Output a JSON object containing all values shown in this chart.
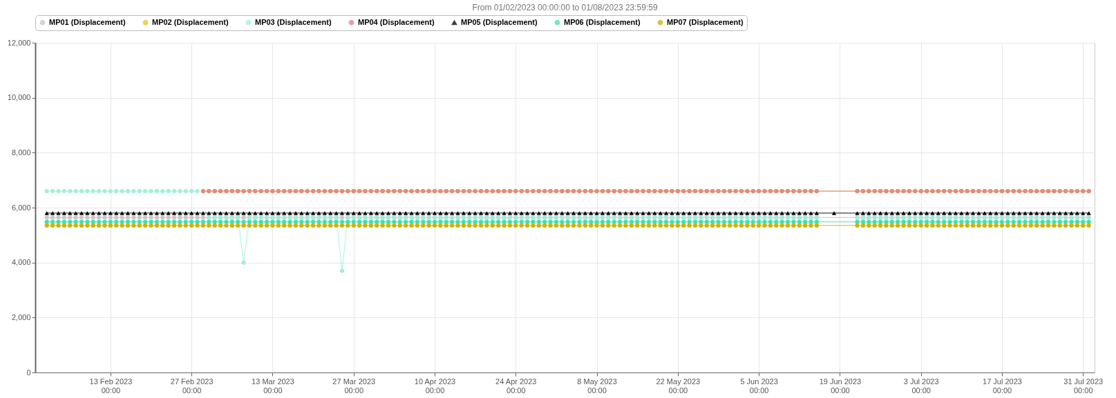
{
  "chart_data": {
    "type": "line",
    "title": "From 01/02/2023 00:00:00 to 01/08/2023 23:59:59",
    "marker": "circle",
    "grid": true,
    "legend": "top left",
    "xlim": [
      "2023-01-31",
      "2023-08-02"
    ],
    "ylim": [
      0,
      12000
    ],
    "yticks": [
      0,
      {
        "value": 2000,
        "label": "2,000"
      },
      {
        "value": 4000,
        "label": "4,000"
      },
      {
        "value": 6000,
        "label": "6,000"
      },
      {
        "value": 8000,
        "label": "8,000"
      },
      {
        "value": 10000,
        "label": "10,000"
      },
      {
        "value": 12000,
        "label": "12,000"
      }
    ],
    "xticks": [
      {
        "value": "2023-02-13",
        "label": "13 Feb 2023\n00:00"
      },
      {
        "value": "2023-02-27",
        "label": "27 Feb 2023\n00:00"
      },
      {
        "value": "2023-03-13",
        "label": "13 Mar 2023\n00:00"
      },
      {
        "value": "2023-03-27",
        "label": "27 Mar 2023\n00:00"
      },
      {
        "value": "2023-04-10",
        "label": "10 Apr 2023\n00:00"
      },
      {
        "value": "2023-04-24",
        "label": "24 Apr 2023\n00:00"
      },
      {
        "value": "2023-05-08",
        "label": "8 May 2023\n00:00"
      },
      {
        "value": "2023-05-22",
        "label": "22 May 2023\n00:00"
      },
      {
        "value": "2023-06-05",
        "label": "5 Jun 2023\n00:00"
      },
      {
        "value": "2023-06-19",
        "label": "19 Jun 2023\n00:00"
      },
      {
        "value": "2023-07-03",
        "label": "3 Jul 2023\n00:00"
      },
      {
        "value": "2023-07-17",
        "label": "17 Jul 2023\n00:00"
      },
      {
        "value": "2023-07-31",
        "label": "31 Jul 2023\n00:00"
      }
    ],
    "x": [
      "2023-02-02",
      "2023-02-03",
      "2023-02-04",
      "2023-02-05",
      "2023-02-06",
      "2023-02-07",
      "2023-02-08",
      "2023-02-09",
      "2023-02-10",
      "2023-02-11",
      "2023-02-12",
      "2023-02-13",
      "2023-02-14",
      "2023-02-15",
      "2023-02-16",
      "2023-02-17",
      "2023-02-18",
      "2023-02-19",
      "2023-02-20",
      "2023-02-21",
      "2023-02-22",
      "2023-02-23",
      "2023-02-24",
      "2023-02-25",
      "2023-02-26",
      "2023-02-27",
      "2023-02-28",
      "2023-03-01",
      "2023-03-02",
      "2023-03-03",
      "2023-03-04",
      "2023-03-05",
      "2023-03-06",
      "2023-03-07",
      "2023-03-08",
      "2023-03-09",
      "2023-03-10",
      "2023-03-11",
      "2023-03-12",
      "2023-03-13",
      "2023-03-14",
      "2023-03-15",
      "2023-03-16",
      "2023-03-17",
      "2023-03-18",
      "2023-03-19",
      "2023-03-20",
      "2023-03-21",
      "2023-03-22",
      "2023-03-23",
      "2023-03-24",
      "2023-03-25",
      "2023-03-26",
      "2023-03-27",
      "2023-03-28",
      "2023-03-29",
      "2023-03-30",
      "2023-03-31",
      "2023-04-01",
      "2023-04-02",
      "2023-04-03",
      "2023-04-04",
      "2023-04-05",
      "2023-04-06",
      "2023-04-07",
      "2023-04-08",
      "2023-04-09",
      "2023-04-10",
      "2023-04-11",
      "2023-04-12",
      "2023-04-13",
      "2023-04-14",
      "2023-04-15",
      "2023-04-16",
      "2023-04-17",
      "2023-04-18",
      "2023-04-19",
      "2023-04-20",
      "2023-04-21",
      "2023-04-22",
      "2023-04-23",
      "2023-04-24",
      "2023-04-25",
      "2023-04-26",
      "2023-04-27",
      "2023-04-28",
      "2023-04-29",
      "2023-04-30",
      "2023-05-01",
      "2023-05-02",
      "2023-05-03",
      "2023-05-04",
      "2023-05-05",
      "2023-05-06",
      "2023-05-07",
      "2023-05-08",
      "2023-05-09",
      "2023-05-10",
      "2023-05-11",
      "2023-05-12",
      "2023-05-13",
      "2023-05-14",
      "2023-05-15",
      "2023-05-16",
      "2023-05-17",
      "2023-05-18",
      "2023-05-19",
      "2023-05-20",
      "2023-05-21",
      "2023-05-22",
      "2023-05-23",
      "2023-05-24",
      "2023-05-25",
      "2023-05-26",
      "2023-05-27",
      "2023-05-28",
      "2023-05-29",
      "2023-05-30",
      "2023-05-31",
      "2023-06-01",
      "2023-06-02",
      "2023-06-03",
      "2023-06-04",
      "2023-06-05",
      "2023-06-06",
      "2023-06-07",
      "2023-06-08",
      "2023-06-09",
      "2023-06-10",
      "2023-06-11",
      "2023-06-12",
      "2023-06-13",
      "2023-06-14",
      "2023-06-15",
      "2023-06-22",
      "2023-06-23",
      "2023-06-24",
      "2023-06-25",
      "2023-06-26",
      "2023-06-27",
      "2023-06-28",
      "2023-06-29",
      "2023-06-30",
      "2023-07-01",
      "2023-07-02",
      "2023-07-03",
      "2023-07-04",
      "2023-07-05",
      "2023-07-06",
      "2023-07-07",
      "2023-07-08",
      "2023-07-09",
      "2023-07-10",
      "2023-07-11",
      "2023-07-12",
      "2023-07-13",
      "2023-07-14",
      "2023-07-15",
      "2023-07-16",
      "2023-07-17",
      "2023-07-18",
      "2023-07-19",
      "2023-07-20",
      "2023-07-21",
      "2023-07-22",
      "2023-07-23",
      "2023-07-24",
      "2023-07-25",
      "2023-07-26",
      "2023-07-27",
      "2023-07-28",
      "2023-07-29",
      "2023-07-30",
      "2023-07-31",
      "2023-08-01"
    ],
    "series": [
      {
        "name": "MP01 (Displacement)",
        "color": "#c8c8c8",
        "values": [
          5640,
          5640,
          5640,
          5640,
          5640,
          5640,
          5640,
          5640,
          5640,
          5640,
          5640,
          5640,
          5640,
          5640,
          5640,
          5640,
          5640,
          5640,
          5640,
          5640,
          5640,
          5640,
          5640,
          5640,
          5640,
          5640,
          5640,
          5640,
          5640,
          5640,
          5640,
          5640,
          5640,
          5640,
          5640,
          5640,
          5640,
          5640,
          5640,
          5640,
          5640,
          5640,
          5640,
          5640,
          5640,
          5640,
          5640,
          5640,
          5640,
          5640,
          5640,
          5640,
          5640,
          5640,
          5640,
          5640,
          5640,
          5640,
          5640,
          5640,
          5640,
          5640,
          5640,
          5640,
          5640,
          5640,
          5640,
          5640,
          5640,
          5640,
          5640,
          5640,
          5640,
          5640,
          5640,
          5640,
          5640,
          5640,
          5640,
          5640,
          5640,
          5640,
          5640,
          5640,
          5640,
          5640,
          5640,
          5640,
          5640,
          5640,
          5640,
          5640,
          5640,
          5640,
          5640,
          5640,
          5640,
          5640,
          5640,
          5640,
          5640,
          5640,
          5640,
          5640,
          5640,
          5640,
          5640,
          5640,
          5640,
          5640,
          5640,
          5640,
          5640,
          5640,
          5640,
          5640,
          5640,
          5640,
          5640,
          5640,
          5640,
          5640,
          5640,
          5640,
          5640,
          5640,
          5640,
          5640,
          5640,
          5640,
          5640,
          5640,
          5640,
          5640,
          5640,
          5640,
          5640,
          5640,
          5640,
          5640,
          5640,
          5640,
          5640,
          5640,
          5640,
          5640,
          5640,
          5640,
          5640,
          5640,
          5640,
          5640,
          5640,
          5640,
          5640,
          5640,
          5640,
          5640,
          5640,
          5640,
          5640,
          5640,
          5640,
          5640,
          5640,
          5640,
          5640,
          5640,
          5640,
          5640,
          5640,
          5640,
          5640,
          5640,
          5640
        ]
      },
      {
        "name": "MP02 (Displacement)",
        "color": "#f0c020",
        "values": [
          null,
          null,
          null,
          null,
          null,
          null,
          null,
          null,
          null,
          null,
          null,
          null,
          null,
          null,
          null,
          null,
          null,
          null,
          null,
          null,
          null,
          null,
          null,
          null,
          null,
          null,
          null,
          6600,
          6600,
          6600,
          6600,
          6600,
          6600,
          6600,
          6600,
          6600,
          6600,
          6600,
          6600,
          6600,
          6600,
          6600,
          6600,
          6600,
          6600,
          6600,
          6600,
          6600,
          6600,
          6600,
          6600,
          6600,
          6600,
          6600,
          6600,
          6600,
          6600,
          6600,
          6600,
          6600,
          6600,
          6600,
          6600,
          6600,
          6600,
          6600,
          6600,
          6600,
          6600,
          6600,
          6600,
          6600,
          6600,
          6600,
          6600,
          6600,
          6600,
          6600,
          6600,
          6600,
          6600,
          6600,
          6600,
          6600,
          6600,
          6600,
          6600,
          6600,
          6600,
          6600,
          6600,
          6600,
          6600,
          6600,
          6600,
          6600,
          6600,
          6600,
          6600,
          6600,
          6600,
          6600,
          6600,
          6600,
          6600,
          6600,
          6600,
          6600,
          6600,
          6600,
          6600,
          6600,
          6600,
          6600,
          6600,
          6600,
          6600,
          6600,
          6600,
          6600,
          6600,
          6600,
          6600,
          6600,
          6600,
          6600,
          6600,
          6600,
          6600,
          6600,
          6600,
          6600,
          6600,
          6600,
          6600,
          6600,
          6600,
          6600,
          6600,
          6600,
          6600,
          6600,
          6600,
          6600,
          6600,
          6600,
          6600,
          6600,
          6600,
          6600,
          6600,
          6600,
          6600,
          6600,
          6600,
          6600,
          6600,
          6600,
          6600,
          6600,
          6600,
          6600,
          6600,
          6600,
          6600,
          6600,
          6600,
          6600,
          6600,
          6600,
          6600,
          6600,
          6600,
          6600,
          6600
        ]
      },
      {
        "name": "MP03 (Displacement)",
        "color": "#a0f0d8",
        "values": [
          6600,
          6600,
          6600,
          6600,
          6600,
          6600,
          6600,
          6600,
          6600,
          6600,
          6600,
          6600,
          6600,
          6600,
          6600,
          6600,
          6600,
          6600,
          6600,
          6600,
          6600,
          6600,
          6600,
          6600,
          6600,
          6600,
          6600,
          null,
          5640,
          5640,
          5640,
          5640,
          5640,
          5640,
          4000,
          5640,
          5640,
          5640,
          5640,
          5640,
          5640,
          5640,
          5640,
          5640,
          5640,
          5640,
          5640,
          5640,
          5640,
          5640,
          5640,
          3700,
          5640,
          5640,
          5640,
          5640,
          5640,
          5640,
          5640,
          5640,
          5640,
          5640,
          5640,
          5640,
          5640,
          5640,
          5640,
          5640,
          5640,
          5640,
          5640,
          5640,
          5640,
          5640,
          5640,
          5640,
          5640,
          5640,
          5640,
          5640,
          5640,
          5640,
          5640,
          5640,
          5640,
          5640,
          5640,
          5640,
          5640,
          5640,
          5640,
          5640,
          5640,
          5640,
          5640,
          5640,
          5640,
          5640,
          5640,
          5640,
          5640,
          5640,
          5640,
          5640,
          5640,
          5640,
          5640,
          5640,
          5640,
          5640,
          5640,
          5640,
          5640,
          5640,
          5640,
          5640,
          5640,
          5640,
          5640,
          5640,
          5640,
          5640,
          5640,
          5640,
          5640,
          5640,
          5640,
          5640,
          5640,
          5640,
          5640,
          5640,
          5640,
          5640,
          5640,
          5640,
          5640,
          5640,
          5640,
          5640,
          5640,
          5640,
          5640,
          5640,
          5640,
          5640,
          5640,
          5640,
          5640,
          5640,
          5640,
          5640,
          5640,
          5640,
          5640,
          5640,
          5640,
          5640,
          5640,
          5640,
          5640,
          5640,
          5640,
          5640,
          5640,
          5640,
          5640,
          5640,
          5640,
          5640,
          5640,
          5640,
          5640,
          5640,
          5640
        ]
      },
      {
        "name": "MP04 (Displacement)",
        "color": "#e08090",
        "values": [
          null,
          null,
          null,
          null,
          null,
          null,
          null,
          null,
          null,
          null,
          null,
          null,
          null,
          null,
          null,
          null,
          null,
          null,
          null,
          null,
          null,
          null,
          null,
          null,
          null,
          null,
          null,
          6600,
          6600,
          6600,
          6600,
          6600,
          6600,
          6600,
          6600,
          6600,
          6600,
          6600,
          6600,
          6600,
          6600,
          6600,
          6600,
          6600,
          6600,
          6600,
          6600,
          6600,
          6600,
          6600,
          6600,
          6600,
          6600,
          6600,
          6600,
          6600,
          6600,
          6600,
          6600,
          6600,
          6600,
          6600,
          6600,
          6600,
          6600,
          6600,
          6600,
          6600,
          6600,
          6600,
          6600,
          6600,
          6600,
          6600,
          6600,
          6600,
          6600,
          6600,
          6600,
          6600,
          6600,
          6600,
          6600,
          6600,
          6600,
          6600,
          6600,
          6600,
          6600,
          6600,
          6600,
          6600,
          6600,
          6600,
          6600,
          6600,
          6600,
          6600,
          6600,
          6600,
          6600,
          6600,
          6600,
          6600,
          6600,
          6600,
          6600,
          6600,
          6600,
          6600,
          6600,
          6600,
          6600,
          6600,
          6600,
          6600,
          6600,
          6600,
          6600,
          6600,
          6600,
          6600,
          6600,
          6600,
          6600,
          6600,
          6600,
          6600,
          6600,
          6600,
          6600,
          6600,
          6600,
          6600,
          6600,
          6600,
          6600,
          6600,
          6600,
          6600,
          6600,
          6600,
          6600,
          6600,
          6600,
          6600,
          6600,
          6600,
          6600,
          6600,
          6600,
          6600,
          6600,
          6600,
          6600,
          6600,
          6600,
          6600,
          6600,
          6600,
          6600,
          6600,
          6600,
          6600,
          6600,
          6600,
          6600,
          6600,
          6600,
          6600,
          6600,
          6600,
          6600,
          6600,
          6600
        ]
      },
      {
        "name": "MP05 (Displacement)",
        "color": "#000000",
        "marker": "triangle",
        "x": [
          "2023-02-02",
          "2023-02-03",
          "2023-02-04",
          "2023-02-05",
          "2023-02-06",
          "2023-02-07",
          "2023-02-08",
          "2023-02-09",
          "2023-02-10",
          "2023-02-11",
          "2023-02-12",
          "2023-02-13",
          "2023-02-14",
          "2023-02-15",
          "2023-02-16",
          "2023-02-17",
          "2023-02-18",
          "2023-02-19",
          "2023-02-20",
          "2023-02-21",
          "2023-02-22",
          "2023-02-23",
          "2023-02-24",
          "2023-02-25",
          "2023-02-26",
          "2023-02-27",
          "2023-02-28",
          "2023-03-01",
          "2023-03-02",
          "2023-03-03",
          "2023-03-04",
          "2023-03-05",
          "2023-03-06",
          "2023-03-07",
          "2023-03-08",
          "2023-03-09",
          "2023-03-10",
          "2023-03-11",
          "2023-03-12",
          "2023-03-13",
          "2023-03-14",
          "2023-03-15",
          "2023-03-16",
          "2023-03-17",
          "2023-03-18",
          "2023-03-19",
          "2023-03-20",
          "2023-03-21",
          "2023-03-22",
          "2023-03-23",
          "2023-03-24",
          "2023-03-25",
          "2023-03-26",
          "2023-03-27",
          "2023-03-28",
          "2023-03-29",
          "2023-03-30",
          "2023-03-31",
          "2023-04-01",
          "2023-04-02",
          "2023-04-03",
          "2023-04-04",
          "2023-04-05",
          "2023-04-06",
          "2023-04-07",
          "2023-04-08",
          "2023-04-09",
          "2023-04-10",
          "2023-04-11",
          "2023-04-12",
          "2023-04-13",
          "2023-04-14",
          "2023-04-15",
          "2023-04-16",
          "2023-04-17",
          "2023-04-18",
          "2023-04-19",
          "2023-04-20",
          "2023-04-21",
          "2023-04-22",
          "2023-04-23",
          "2023-04-24",
          "2023-04-25",
          "2023-04-26",
          "2023-04-27",
          "2023-04-28",
          "2023-04-29",
          "2023-04-30",
          "2023-05-01",
          "2023-05-02",
          "2023-05-03",
          "2023-05-04",
          "2023-05-05",
          "2023-05-06",
          "2023-05-07",
          "2023-05-08",
          "2023-05-09",
          "2023-05-10",
          "2023-05-11",
          "2023-05-12",
          "2023-05-13",
          "2023-05-14",
          "2023-05-15",
          "2023-05-16",
          "2023-05-17",
          "2023-05-18",
          "2023-05-19",
          "2023-05-20",
          "2023-05-21",
          "2023-05-22",
          "2023-05-23",
          "2023-05-24",
          "2023-05-25",
          "2023-05-26",
          "2023-05-27",
          "2023-05-28",
          "2023-05-29",
          "2023-05-30",
          "2023-05-31",
          "2023-06-01",
          "2023-06-02",
          "2023-06-03",
          "2023-06-04",
          "2023-06-05",
          "2023-06-06",
          "2023-06-07",
          "2023-06-08",
          "2023-06-09",
          "2023-06-10",
          "2023-06-11",
          "2023-06-12",
          "2023-06-13",
          "2023-06-14",
          "2023-06-15",
          "2023-06-18",
          "2023-06-22",
          "2023-06-23",
          "2023-06-24",
          "2023-06-25",
          "2023-06-26",
          "2023-06-27",
          "2023-06-28",
          "2023-06-29",
          "2023-06-30",
          "2023-07-01",
          "2023-07-02",
          "2023-07-03",
          "2023-07-04",
          "2023-07-05",
          "2023-07-06",
          "2023-07-07",
          "2023-07-08",
          "2023-07-09",
          "2023-07-10",
          "2023-07-11",
          "2023-07-12",
          "2023-07-13",
          "2023-07-14",
          "2023-07-15",
          "2023-07-16",
          "2023-07-17",
          "2023-07-18",
          "2023-07-19",
          "2023-07-20",
          "2023-07-21",
          "2023-07-22",
          "2023-07-23",
          "2023-07-24",
          "2023-07-25",
          "2023-07-26",
          "2023-07-27",
          "2023-07-28",
          "2023-07-29",
          "2023-07-30",
          "2023-07-31",
          "2023-08-01"
        ],
        "values": [
          5800,
          5800,
          5800,
          5800,
          5800,
          5800,
          5800,
          5800,
          5800,
          5800,
          5800,
          5800,
          5800,
          5800,
          5800,
          5800,
          5800,
          5800,
          5800,
          5800,
          5800,
          5800,
          5800,
          5800,
          5800,
          5800,
          5800,
          5800,
          5800,
          5800,
          5800,
          5800,
          5800,
          5800,
          5800,
          5800,
          5800,
          5800,
          5800,
          5800,
          5800,
          5800,
          5800,
          5800,
          5800,
          5800,
          5800,
          5800,
          5800,
          5800,
          5800,
          5800,
          5800,
          5800,
          5800,
          5800,
          5800,
          5800,
          5800,
          5800,
          5800,
          5800,
          5800,
          5800,
          5800,
          5800,
          5800,
          5800,
          5800,
          5800,
          5800,
          5800,
          5800,
          5800,
          5800,
          5800,
          5800,
          5800,
          5800,
          5800,
          5800,
          5800,
          5800,
          5800,
          5800,
          5800,
          5800,
          5800,
          5800,
          5800,
          5800,
          5800,
          5800,
          5800,
          5800,
          5800,
          5800,
          5800,
          5800,
          5800,
          5800,
          5800,
          5800,
          5800,
          5800,
          5800,
          5800,
          5800,
          5800,
          5800,
          5800,
          5800,
          5800,
          5800,
          5800,
          5800,
          5800,
          5800,
          5800,
          5800,
          5800,
          5800,
          5800,
          5800,
          5800,
          5800,
          5800,
          5800,
          5800,
          5800,
          5800,
          5800,
          5800,
          5800,
          5800,
          5800,
          5800,
          5800,
          5800,
          5800,
          5800,
          5800,
          5800,
          5800,
          5800,
          5800,
          5800,
          5800,
          5800,
          5800,
          5800,
          5800,
          5800,
          5800,
          5800,
          5800,
          5800,
          5800,
          5800,
          5800,
          5800,
          5800,
          5800,
          5800,
          5800,
          5800,
          5800,
          5800,
          5800,
          5800,
          5800,
          5800,
          5800,
          5800,
          5800,
          5800
        ]
      },
      {
        "name": "MP06 (Displacement)",
        "color": "#40e0b0",
        "values": [
          5480,
          5480,
          5480,
          5480,
          5480,
          5480,
          5480,
          5480,
          5480,
          5480,
          5480,
          5480,
          5480,
          5480,
          5480,
          5480,
          5480,
          5480,
          5480,
          5480,
          5480,
          5480,
          5480,
          5480,
          5480,
          5480,
          5480,
          5480,
          5480,
          5480,
          5480,
          5480,
          5480,
          5480,
          5480,
          5480,
          5480,
          5480,
          5480,
          5480,
          5480,
          5480,
          5480,
          5480,
          5480,
          5480,
          5480,
          5480,
          5480,
          5480,
          5480,
          5480,
          5480,
          5480,
          5480,
          5480,
          5480,
          5480,
          5480,
          5480,
          5480,
          5480,
          5480,
          5480,
          5480,
          5480,
          5480,
          5480,
          5480,
          5480,
          5480,
          5480,
          5480,
          5480,
          5480,
          5480,
          5480,
          5480,
          5480,
          5480,
          5480,
          5480,
          5480,
          5480,
          5480,
          5480,
          5480,
          5480,
          5480,
          5480,
          5480,
          5480,
          5480,
          5480,
          5480,
          5480,
          5480,
          5480,
          5480,
          5480,
          5480,
          5480,
          5480,
          5480,
          5480,
          5480,
          5480,
          5480,
          5480,
          5480,
          5480,
          5480,
          5480,
          5480,
          5480,
          5480,
          5480,
          5480,
          5480,
          5480,
          5480,
          5480,
          5480,
          5480,
          5480,
          5480,
          5480,
          5480,
          5480,
          5480,
          5480,
          5480,
          5480,
          5480,
          5480,
          5480,
          5480,
          5480,
          5480,
          5480,
          5480,
          5480,
          5480,
          5480,
          5480,
          5480,
          5480,
          5480,
          5480,
          5480,
          5480,
          5480,
          5480,
          5480,
          5480,
          5480,
          5480,
          5480,
          5480,
          5480,
          5480,
          5480,
          5480,
          5480,
          5480,
          5480,
          5480,
          5480,
          5480,
          5480,
          5480,
          5480,
          5480,
          5480,
          5480
        ]
      },
      {
        "name": "MP07 (Displacement)",
        "color": "#d4b000",
        "values": [
          5350,
          5350,
          5350,
          5350,
          5350,
          5350,
          5350,
          5350,
          5350,
          5350,
          5350,
          5350,
          5350,
          5350,
          5350,
          5350,
          5350,
          5350,
          5350,
          5350,
          5350,
          5350,
          5350,
          5350,
          5350,
          5350,
          5350,
          5350,
          5350,
          5350,
          5350,
          5350,
          5350,
          5350,
          5350,
          5350,
          5350,
          5350,
          5350,
          5350,
          5350,
          5350,
          5350,
          5350,
          5350,
          5350,
          5350,
          5350,
          5350,
          5350,
          5350,
          5350,
          5350,
          5350,
          5350,
          5350,
          5350,
          5350,
          5350,
          5350,
          5350,
          5350,
          5350,
          5350,
          5350,
          5350,
          5350,
          5350,
          5350,
          5350,
          5350,
          5350,
          5350,
          5350,
          5350,
          5350,
          5350,
          5350,
          5350,
          5350,
          5350,
          5350,
          5350,
          5350,
          5350,
          5350,
          5350,
          5350,
          5350,
          5350,
          5350,
          5350,
          5350,
          5350,
          5350,
          5350,
          5350,
          5350,
          5350,
          5350,
          5350,
          5350,
          5350,
          5350,
          5350,
          5350,
          5350,
          5350,
          5350,
          5350,
          5350,
          5350,
          5350,
          5350,
          5350,
          5350,
          5350,
          5350,
          5350,
          5350,
          5350,
          5350,
          5350,
          5350,
          5350,
          5350,
          5350,
          5350,
          5350,
          5350,
          5350,
          5350,
          5350,
          5350,
          5350,
          5350,
          5350,
          5350,
          5350,
          5350,
          5350,
          5350,
          5350,
          5350,
          5350,
          5350,
          5350,
          5350,
          5350,
          5350,
          5350,
          5350,
          5350,
          5350,
          5350,
          5350,
          5350,
          5350,
          5350,
          5350,
          5350,
          5350,
          5350,
          5350,
          5350,
          5350,
          5350,
          5350,
          5350,
          5350,
          5350,
          5350,
          5350,
          5350,
          5350
        ]
      }
    ]
  }
}
